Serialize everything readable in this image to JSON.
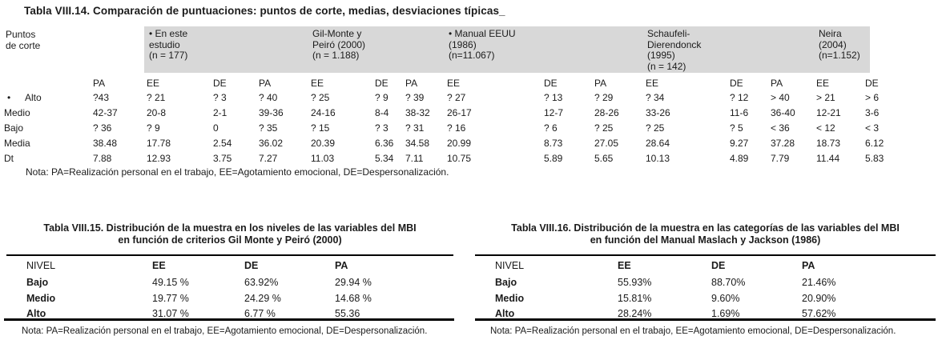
{
  "table14": {
    "title": "Tabla VIII.14. Comparación de puntuaciones: puntos de corte, medias, desviaciones típicas_",
    "row_header": "Puntos\nde corte",
    "studies": [
      {
        "label": "• En este\nestudio\n(n = 177)"
      },
      {
        "label": "Gil-Monte y\nPeiró (2000)\n(n = 1.188)"
      },
      {
        "label": "• Manual EEUU\n(1986)\n(n=11.067)"
      },
      {
        "label": "Schaufeli-\nDierendonck\n(1995)\n(n = 142)"
      },
      {
        "label": "Neira\n(2004)\n(n=1.152)"
      }
    ],
    "column_headers": [
      "PA",
      "EE",
      "DE",
      "PA",
      "EE",
      "DE",
      "PA",
      "EE",
      "DE",
      "PA",
      "EE",
      "DE",
      "PA",
      "EE",
      "DE"
    ],
    "rows": [
      {
        "bullet": "•",
        "label": "Alto",
        "values": [
          "?43",
          "? 21",
          "? 3",
          "? 40",
          "? 25",
          "? 9",
          "? 39",
          "? 27",
          "? 13",
          "? 29",
          "? 34",
          "? 12",
          "> 40",
          "> 21",
          "> 6"
        ]
      },
      {
        "label": "Medio",
        "values": [
          "42-37",
          "20-8",
          "2-1",
          "39-36",
          "24-16",
          "8-4",
          "38-32",
          "26-17",
          "12-7",
          "28-26",
          "33-26",
          "11-6",
          "36-40",
          "12-21",
          "3-6"
        ]
      },
      {
        "label": "Bajo",
        "values": [
          "? 36",
          "? 9",
          "0",
          "? 35",
          "? 15",
          "? 3",
          "? 31",
          "? 16",
          "? 6",
          "? 25",
          "? 25",
          "? 5",
          "< 36",
          "< 12",
          "< 3"
        ]
      },
      {
        "label": "Media",
        "values": [
          "38.48",
          "17.78",
          "2.54",
          "36.02",
          "20.39",
          "6.36",
          "34.58",
          "20.99",
          "8.73",
          "27.05",
          "28.64",
          "9.27",
          "37.28",
          "18.73",
          "6.12"
        ]
      },
      {
        "label": "Dt",
        "values": [
          "7.88",
          "12.93",
          "3.75",
          "7.27",
          "11.03",
          "5.34",
          "7.11",
          "10.75",
          "5.89",
          "5.65",
          "10.13",
          "4.89",
          "7.79",
          "11.44",
          "5.83"
        ]
      }
    ],
    "note": "Nota: PA=Realización personal en el trabajo, EE=Agotamiento emocional, DE=Despersonalización."
  },
  "table15": {
    "title_line1": "Tabla VIII.15. Distribución de la muestra en los niveles de las variables del MBI",
    "title_line2": "en función de criterios Gil Monte y Peiró (2000)",
    "headers": [
      "NIVEL",
      "EE",
      "DE",
      "PA"
    ],
    "rows": [
      {
        "label": "Bajo",
        "values": [
          "49.15 %",
          "63.92%",
          "29.94 %"
        ]
      },
      {
        "label": "Medio",
        "values": [
          "19.77 %",
          "24.29 %",
          "14.68 %"
        ]
      },
      {
        "label": "Alto",
        "values": [
          "31.07 %",
          "6.77 %",
          "55.36"
        ]
      }
    ],
    "note": "Nota: PA=Realización personal en el trabajo, EE=Agotamiento emocional, DE=Despersonalización."
  },
  "table16": {
    "title_line1": "Tabla VIII.16. Distribución de la muestra en las categorías de las variables del MBI",
    "title_line2": "en función del Manual Maslach y Jackson (1986)",
    "headers": [
      "NIVEL",
      "EE",
      "DE",
      "PA"
    ],
    "rows": [
      {
        "label": "Bajo",
        "values": [
          "55.93%",
          "88.70%",
          "21.46%"
        ]
      },
      {
        "label": "Medio",
        "values": [
          "15.81%",
          "9.60%",
          "20.90%"
        ]
      },
      {
        "label": "Alto",
        "values": [
          "28.24%",
          "1.69%",
          "57.62%"
        ]
      }
    ],
    "note": "Nota: PA=Realización personal en el trabajo, EE=Agotamiento emocional, DE=Despersonalización."
  }
}
